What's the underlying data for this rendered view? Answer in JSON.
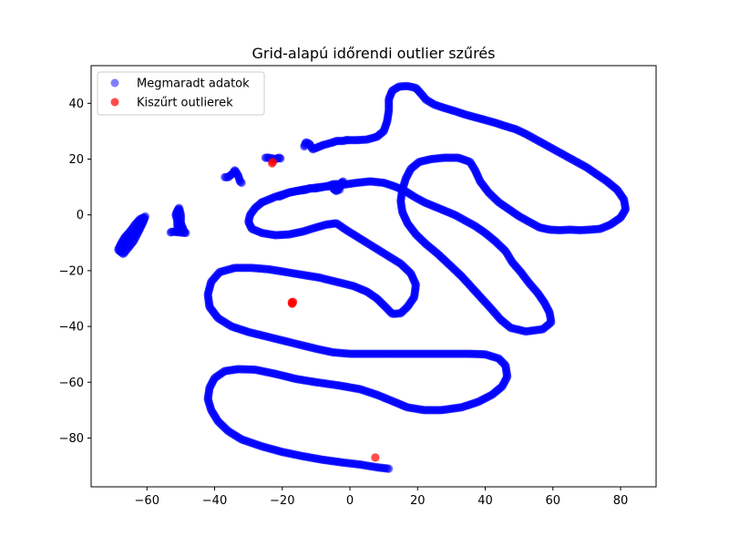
{
  "chart_data": {
    "type": "scatter",
    "title": "Grid-alapú időrendi outlier szűrés",
    "xlabel": "",
    "ylabel": "",
    "xlim": [
      -76.5,
      90.5
    ],
    "ylim": [
      -97.5,
      53.5
    ],
    "x_ticks": [
      -60,
      -40,
      -20,
      0,
      20,
      40,
      60,
      80
    ],
    "y_ticks": [
      -80,
      -60,
      -40,
      -20,
      0,
      20,
      40
    ],
    "x_tick_labels": [
      "−60",
      "−40",
      "−20",
      "0",
      "20",
      "40",
      "60",
      "80"
    ],
    "y_tick_labels": [
      "−80",
      "−60",
      "−40",
      "−20",
      "0",
      "20",
      "40"
    ],
    "grid": false,
    "legend_position": "upper-left",
    "series": [
      {
        "name": "Megmaradt adatok",
        "color": "#0000ff",
        "alpha": 0.5,
        "groups": [
          [
            [
              11.5,
              -91
            ],
            [
              8,
              -90.5
            ],
            [
              3,
              -89.5
            ],
            [
              -2,
              -88.8
            ],
            [
              -8,
              -87.8
            ],
            [
              -14,
              -86.5
            ],
            [
              -20,
              -85
            ],
            [
              -26,
              -83
            ],
            [
              -32,
              -80.5
            ],
            [
              -36,
              -77.5
            ],
            [
              -39,
              -74
            ],
            [
              -41,
              -70
            ],
            [
              -42,
              -66
            ],
            [
              -41.5,
              -62
            ],
            [
              -40,
              -58.5
            ],
            [
              -37,
              -56
            ],
            [
              -33,
              -55.3
            ],
            [
              -28,
              -55.5
            ],
            [
              -22,
              -57
            ],
            [
              -16,
              -58.8
            ],
            [
              -10,
              -60
            ],
            [
              -3,
              -61.2
            ],
            [
              3,
              -62.5
            ],
            [
              8,
              -64.5
            ],
            [
              13,
              -67
            ],
            [
              17,
              -69
            ],
            [
              22,
              -70
            ],
            [
              27,
              -70
            ],
            [
              33,
              -69
            ],
            [
              38,
              -67
            ],
            [
              42,
              -64.5
            ],
            [
              45,
              -61.5
            ],
            [
              46.5,
              -58
            ],
            [
              46,
              -54
            ],
            [
              44,
              -51.5
            ],
            [
              40,
              -50
            ],
            [
              35,
              -49.8
            ],
            [
              30,
              -49.8
            ],
            [
              25,
              -49.8
            ],
            [
              20,
              -49.8
            ],
            [
              15,
              -49.8
            ],
            [
              10,
              -49.8
            ],
            [
              5,
              -49.8
            ],
            [
              0,
              -49.8
            ],
            [
              -5,
              -49.3
            ],
            [
              -10,
              -48
            ],
            [
              -15,
              -46.5
            ],
            [
              -20,
              -45
            ],
            [
              -25,
              -43.5
            ],
            [
              -30,
              -42
            ],
            [
              -35,
              -40
            ],
            [
              -39,
              -37
            ],
            [
              -41.5,
              -33
            ],
            [
              -42,
              -28.5
            ],
            [
              -41,
              -24
            ],
            [
              -38.5,
              -20.5
            ],
            [
              -34,
              -19
            ],
            [
              -29,
              -19
            ],
            [
              -24,
              -19.5
            ],
            [
              -19,
              -20.5
            ],
            [
              -14,
              -21.5
            ],
            [
              -9,
              -22.5
            ],
            [
              -4,
              -24
            ],
            [
              1,
              -25.5
            ],
            [
              5,
              -27.5
            ],
            [
              8,
              -30
            ],
            [
              10.5,
              -33
            ],
            [
              12.5,
              -35.5
            ],
            [
              15,
              -35.3
            ],
            [
              17,
              -33
            ],
            [
              19,
              -29.5
            ],
            [
              19.5,
              -25
            ],
            [
              18,
              -21
            ],
            [
              15,
              -17.5
            ],
            [
              11,
              -14.5
            ],
            [
              7,
              -11.5
            ],
            [
              3,
              -8.5
            ],
            [
              -1,
              -5.5
            ],
            [
              -4,
              -3
            ],
            [
              -7,
              -3.5
            ],
            [
              -10,
              -4.5
            ],
            [
              -14,
              -6
            ],
            [
              -18,
              -7
            ],
            [
              -22,
              -7.3
            ],
            [
              -26,
              -6.5
            ],
            [
              -29,
              -5
            ],
            [
              -30,
              -2.5
            ],
            [
              -29.5,
              0
            ],
            [
              -28,
              2.5
            ],
            [
              -26,
              4.5
            ]
          ],
          [
            [
              -26,
              4.5
            ],
            [
              -22,
              6.5
            ],
            [
              -18,
              8
            ],
            [
              -14,
              9
            ],
            [
              -10,
              9.8
            ],
            [
              -6,
              10.3
            ],
            [
              -2,
              10.8
            ],
            [
              2,
              11.5
            ],
            [
              6,
              12
            ],
            [
              10,
              11.5
            ],
            [
              13,
              10.3
            ],
            [
              16,
              8.8
            ],
            [
              19,
              6.5
            ],
            [
              22,
              4.5
            ],
            [
              25,
              3
            ],
            [
              28,
              1.5
            ],
            [
              31,
              0
            ],
            [
              34,
              -2
            ],
            [
              37,
              -4
            ],
            [
              40,
              -6.5
            ],
            [
              43,
              -9.5
            ],
            [
              46,
              -13
            ],
            [
              48,
              -17
            ],
            [
              50.5,
              -20.5
            ],
            [
              53,
              -24.5
            ],
            [
              55.5,
              -28
            ],
            [
              57.5,
              -31.5
            ],
            [
              59,
              -35
            ],
            [
              59.5,
              -38.5
            ],
            [
              57,
              -41
            ],
            [
              52,
              -41.8
            ],
            [
              47.5,
              -40.5
            ],
            [
              44.5,
              -37.5
            ],
            [
              42,
              -34
            ],
            [
              39,
              -30
            ],
            [
              36,
              -26
            ],
            [
              33,
              -22
            ],
            [
              29.5,
              -18
            ],
            [
              26,
              -14
            ],
            [
              22.5,
              -10.5
            ],
            [
              19.5,
              -7
            ],
            [
              17,
              -3
            ],
            [
              15.5,
              1
            ],
            [
              15,
              5
            ],
            [
              15.5,
              9
            ],
            [
              16.5,
              13
            ],
            [
              18,
              16.5
            ],
            [
              20.5,
              19
            ],
            [
              24,
              20
            ],
            [
              28,
              20.5
            ],
            [
              32,
              20.5
            ],
            [
              35.5,
              19
            ],
            [
              37,
              16
            ],
            [
              38.5,
              12
            ],
            [
              41,
              8
            ],
            [
              44,
              4.5
            ],
            [
              47,
              2
            ],
            [
              50,
              -0.5
            ],
            [
              53,
              -2.5
            ],
            [
              56,
              -4.5
            ],
            [
              59,
              -5.3
            ],
            [
              62,
              -5.5
            ],
            [
              65,
              -5.3
            ],
            [
              68,
              -5.5
            ],
            [
              71,
              -5.3
            ],
            [
              74,
              -5
            ],
            [
              77,
              -3.5
            ],
            [
              80,
              -1
            ],
            [
              81.5,
              2
            ],
            [
              81,
              5.5
            ],
            [
              79,
              9
            ],
            [
              76,
              12
            ],
            [
              73,
              14.5
            ],
            [
              70,
              17
            ],
            [
              67,
              19
            ],
            [
              64,
              21
            ],
            [
              61,
              23
            ],
            [
              58,
              25
            ],
            [
              55,
              27
            ],
            [
              52,
              29
            ],
            [
              49,
              30.7
            ],
            [
              46,
              31.8
            ],
            [
              43,
              33
            ],
            [
              40,
              34
            ],
            [
              37,
              35
            ],
            [
              34,
              36
            ],
            [
              31,
              37.2
            ],
            [
              28,
              38.3
            ],
            [
              25,
              39.5
            ],
            [
              22.5,
              41.3
            ],
            [
              21,
              43.5
            ],
            [
              19.5,
              45.5
            ],
            [
              17,
              46.2
            ],
            [
              14.5,
              46
            ],
            [
              12.5,
              44.5
            ],
            [
              11.5,
              41.5
            ],
            [
              11.5,
              37.5
            ],
            [
              11,
              33.5
            ],
            [
              10,
              30
            ],
            [
              8,
              28
            ],
            [
              5,
              27
            ],
            [
              2,
              26.8
            ],
            [
              -1,
              26.8
            ]
          ]
        ],
        "clusters": [
          [
            [
              -68,
              -13
            ],
            [
              -67,
              -11.5
            ],
            [
              -66,
              -10
            ],
            [
              -65,
              -8.5
            ],
            [
              -64,
              -7
            ],
            [
              -63,
              -5.5
            ],
            [
              -62,
              -4
            ],
            [
              -61.5,
              -2.5
            ],
            [
              -61,
              -1
            ],
            [
              -62,
              -1.5
            ],
            [
              -63.5,
              -3.5
            ],
            [
              -65,
              -6
            ],
            [
              -66.5,
              -8
            ],
            [
              -67.5,
              -10
            ],
            [
              -68.5,
              -12.5
            ],
            [
              -67,
              -14
            ],
            [
              -64,
              -9.5
            ],
            [
              -62.5,
              -6
            ],
            [
              -61,
              -2.2
            ],
            [
              -60.5,
              -0.5
            ]
          ],
          [
            [
              -51.5,
              -6
            ],
            [
              -50.5,
              -5.5
            ],
            [
              -51,
              -4
            ],
            [
              -51,
              -2
            ],
            [
              -51.5,
              0
            ],
            [
              -51,
              1.5
            ],
            [
              -50.5,
              2.5
            ],
            [
              -50,
              0
            ],
            [
              -50,
              -3
            ],
            [
              -49,
              -6
            ],
            [
              -48.5,
              -6.5
            ],
            [
              -52.5,
              -6
            ],
            [
              -53,
              -6.3
            ]
          ],
          [
            [
              -37,
              13.5
            ],
            [
              -36,
              13.5
            ],
            [
              -34.5,
              15
            ],
            [
              -34,
              16
            ],
            [
              -33,
              14
            ],
            [
              -32.5,
              12
            ],
            [
              -32,
              11.5
            ]
          ],
          [
            [
              -25,
              20.5
            ],
            [
              -24,
              20.5
            ],
            [
              -22,
              20
            ],
            [
              -21,
              20.5
            ],
            [
              -20.5,
              20.2
            ]
          ],
          [
            [
              -13.5,
              24.5
            ],
            [
              -13,
              26
            ],
            [
              -12,
              25.5
            ],
            [
              -11,
              23.5
            ],
            [
              -10,
              24
            ],
            [
              -9,
              24.5
            ],
            [
              -8,
              25
            ],
            [
              -5,
              26
            ],
            [
              -4,
              26.5
            ],
            [
              -2,
              26.5
            ],
            [
              -1,
              26.8
            ]
          ],
          [
            [
              -21,
              6.5
            ],
            [
              -20,
              7
            ],
            [
              -18,
              8
            ],
            [
              -16,
              8.5
            ],
            [
              -13,
              9
            ],
            [
              -12,
              9.5
            ],
            [
              -10,
              9.5
            ],
            [
              -8,
              10
            ],
            [
              -6,
              10.5
            ],
            [
              -5,
              11
            ],
            [
              -3,
              11
            ],
            [
              -2,
              12
            ],
            [
              -3,
              10
            ],
            [
              -4,
              8.5
            ],
            [
              -5,
              9.5
            ],
            [
              -3,
              9
            ]
          ]
        ]
      },
      {
        "name": "Kiszűrt outlierek",
        "color": "#ff0000",
        "alpha": 0.7,
        "points": [
          [
            -23,
            18.5
          ],
          [
            -22.8,
            19
          ],
          [
            -17.2,
            -31.3
          ],
          [
            -17,
            -31.6
          ],
          [
            -16.8,
            -31.2
          ],
          [
            -17.1,
            -31.9
          ],
          [
            7.5,
            -87
          ]
        ]
      }
    ]
  }
}
